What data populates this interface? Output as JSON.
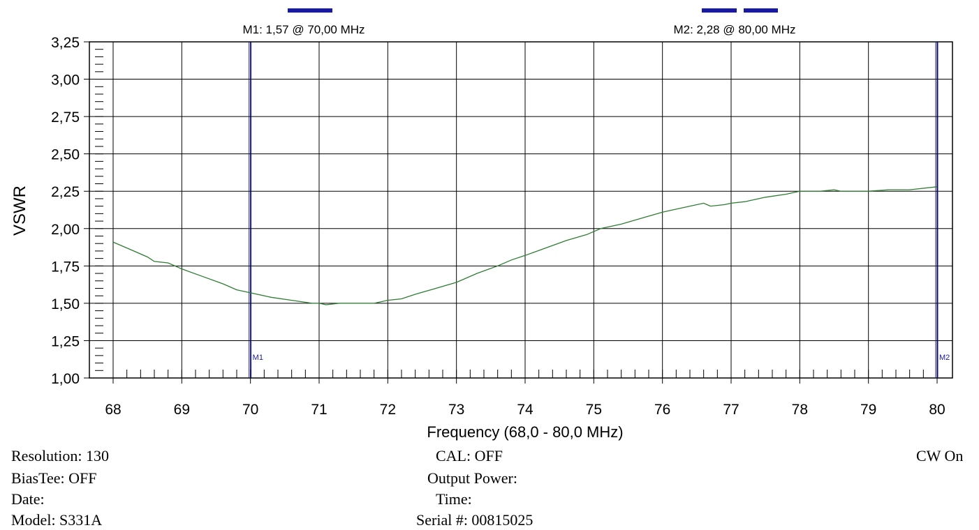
{
  "markers": [
    {
      "id": "M1",
      "label": "M1: 1,57  @ 70,00 MHz",
      "tag": "M1",
      "x": 70.0,
      "y": 1.57
    },
    {
      "id": "M2",
      "label": "M2: 2,28  @ 80,00 MHz",
      "tag": "M2",
      "x": 80.0,
      "y": 2.28
    }
  ],
  "info": {
    "resolution": "Resolution:  130",
    "cal": "CAL: OFF",
    "cw": "CW On",
    "biastee": "BiasTee: OFF",
    "output_power": "Output Power:",
    "date": "Date:",
    "time": "Time:",
    "model": "Model: S331A",
    "serial": "Serial #: 00815025"
  },
  "colors": {
    "trace": "#2e7d32",
    "marker": "#1a1a9e",
    "grid": "#000000"
  },
  "chart_data": {
    "type": "line",
    "title": "",
    "xlabel": "Frequency (68,0 - 80,0 MHz)",
    "ylabel": "VSWR",
    "xlim": [
      68,
      80
    ],
    "ylim": [
      1.0,
      3.25
    ],
    "grid": true,
    "x_ticks": [
      "68",
      "69",
      "70",
      "71",
      "72",
      "73",
      "74",
      "75",
      "76",
      "77",
      "78",
      "79",
      "80"
    ],
    "y_ticks": [
      "1,00",
      "1,25",
      "1,50",
      "1,75",
      "2,00",
      "2,25",
      "2,50",
      "2,75",
      "3,00",
      "3,25"
    ],
    "series": [
      {
        "x": [
          68.0,
          68.3,
          68.5,
          68.6,
          68.8,
          69.0,
          69.3,
          69.6,
          69.8,
          70.0,
          70.3,
          70.6,
          70.9,
          71.0,
          71.1,
          71.3,
          71.6,
          71.8,
          72.0,
          72.2,
          72.4,
          72.7,
          73.0,
          73.3,
          73.6,
          73.8,
          74.0,
          74.3,
          74.6,
          74.9,
          75.1,
          75.4,
          75.7,
          76.0,
          76.3,
          76.6,
          76.7,
          76.9,
          77.0,
          77.2,
          77.5,
          77.8,
          78.0,
          78.3,
          78.5,
          78.6,
          78.8,
          79.0,
          79.3,
          79.6,
          80.0
        ],
        "y": [
          1.91,
          1.85,
          1.81,
          1.78,
          1.77,
          1.73,
          1.68,
          1.63,
          1.59,
          1.57,
          1.54,
          1.52,
          1.5,
          1.5,
          1.49,
          1.5,
          1.5,
          1.5,
          1.52,
          1.53,
          1.56,
          1.6,
          1.64,
          1.7,
          1.75,
          1.79,
          1.82,
          1.87,
          1.92,
          1.96,
          2.0,
          2.03,
          2.07,
          2.11,
          2.14,
          2.17,
          2.15,
          2.16,
          2.17,
          2.18,
          2.21,
          2.23,
          2.25,
          2.25,
          2.26,
          2.25,
          2.25,
          2.25,
          2.26,
          2.26,
          2.28
        ]
      }
    ]
  }
}
